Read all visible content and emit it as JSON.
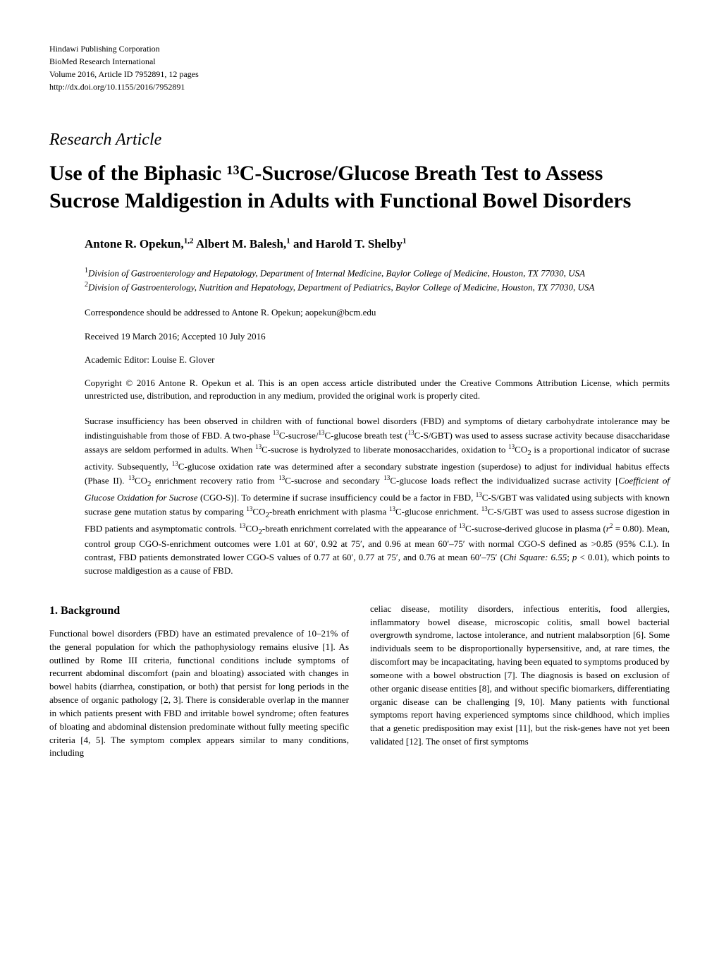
{
  "publisher": {
    "name": "Hindawi Publishing Corporation",
    "journal": "BioMed Research International",
    "volume_info": "Volume 2016, Article ID 7952891, 12 pages",
    "doi": "http://dx.doi.org/10.1155/2016/7952891"
  },
  "article_type": "Research Article",
  "title": "Use of the Biphasic ¹³C-Sucrose/Glucose Breath Test to Assess Sucrose Maldigestion in Adults with Functional Bowel Disorders",
  "authors_html": "Antone R. Opekun,<sup>1,2</sup> Albert M. Balesh,<sup>1</sup> and Harold T. Shelby<sup>1</sup>",
  "affiliations": [
    "<sup>1</sup>Division of Gastroenterology and Hepatology, Department of Internal Medicine, Baylor College of Medicine, Houston, TX 77030, USA",
    "<sup>2</sup>Division of Gastroenterology, Nutrition and Hepatology, Department of Pediatrics, Baylor College of Medicine, Houston, TX 77030, USA"
  ],
  "correspondence": "Correspondence should be addressed to Antone R. Opekun; aopekun@bcm.edu",
  "dates": "Received 19 March 2016; Accepted 10 July 2016",
  "editor": "Academic Editor: Louise E. Glover",
  "copyright": "Copyright © 2016 Antone R. Opekun et al. This is an open access article distributed under the Creative Commons Attribution License, which permits unrestricted use, distribution, and reproduction in any medium, provided the original work is properly cited.",
  "abstract": "Sucrase insufficiency has been observed in children with of functional bowel disorders (FBD) and symptoms of dietary carbohydrate intolerance may be indistinguishable from those of FBD. A two-phase <sup>13</sup>C-sucrose/<sup>13</sup>C-glucose breath test (<sup>13</sup>C-S/GBT) was used to assess sucrase activity because disaccharidase assays are seldom performed in adults. When <sup>13</sup>C-sucrose is hydrolyzed to liberate monosaccharides, oxidation to <sup>13</sup>CO<sub>2</sub> is a proportional indicator of sucrase activity. Subsequently, <sup>13</sup>C-glucose oxidation rate was determined after a secondary substrate ingestion (superdose) to adjust for individual habitus effects (Phase II). <sup>13</sup>CO<sub>2</sub> enrichment recovery ratio from <sup>13</sup>C-sucrose and secondary <sup>13</sup>C-glucose loads reflect the individualized sucrase activity [<i>Coefficient of Glucose Oxidation for Sucrose</i> (CGO-S)]. To determine if sucrase insufficiency could be a factor in FBD, <sup>13</sup>C-S/GBT was validated using subjects with known sucrase gene mutation status by comparing <sup>13</sup>CO<sub>2</sub>-breath enrichment with plasma <sup>13</sup>C-glucose enrichment. <sup>13</sup>C-S/GBT was used to assess sucrose digestion in FBD patients and asymptomatic controls. <sup>13</sup>CO<sub>2</sub>-breath enrichment correlated with the appearance of <sup>13</sup>C-sucrose-derived glucose in plasma (<i>r</i><sup>2</sup> = 0.80). Mean, control group CGO-S-enrichment outcomes were 1.01 at 60′, 0.92 at 75′, and 0.96 at mean 60′–75′ with normal CGO-S defined as >0.85 (95% C.I.). In contrast, FBD patients demonstrated lower CGO-S values of 0.77 at 60′, 0.77 at 75′, and 0.76 at mean 60′–75′ (<i>Chi Square: 6.55</i>; <i>p</i> < 0.01), which points to sucrose maldigestion as a cause of FBD.",
  "section_heading": "1. Background",
  "column_left": "Functional bowel disorders (FBD) have an estimated prevalence of 10–21% of the general population for which the pathophysiology remains elusive [1]. As outlined by Rome III criteria, functional conditions include symptoms of recurrent abdominal discomfort (pain and bloating) associated with changes in bowel habits (diarrhea, constipation, or both) that persist for long periods in the absence of organic pathology [2, 3]. There is considerable overlap in the manner in which patients present with FBD and irritable bowel syndrome; often features of bloating and abdominal distension predominate without fully meeting specific criteria [4, 5]. The symptom complex appears similar to many conditions, including",
  "column_right": "celiac disease, motility disorders, infectious enteritis, food allergies, inflammatory bowel disease, microscopic colitis, small bowel bacterial overgrowth syndrome, lactose intolerance, and nutrient malabsorption [6]. Some individuals seem to be disproportionally hypersensitive, and, at rare times, the discomfort may be incapacitating, having been equated to symptoms produced by someone with a bowel obstruction [7]. The diagnosis is based on exclusion of other organic disease entities [8], and without specific biomarkers, differentiating organic disease can be challenging [9, 10]. Many patients with functional symptoms report having experienced symptoms since childhood, which implies that a genetic predisposition may exist [11], but the risk-genes have not yet been validated [12]. The onset of first symptoms",
  "colors": {
    "background": "#ffffff",
    "text": "#000000"
  },
  "fonts": {
    "body_family": "Minion Pro, Times New Roman, serif",
    "body_size_pt": 10,
    "title_size_pt": 22,
    "heading_size_pt": 12
  }
}
